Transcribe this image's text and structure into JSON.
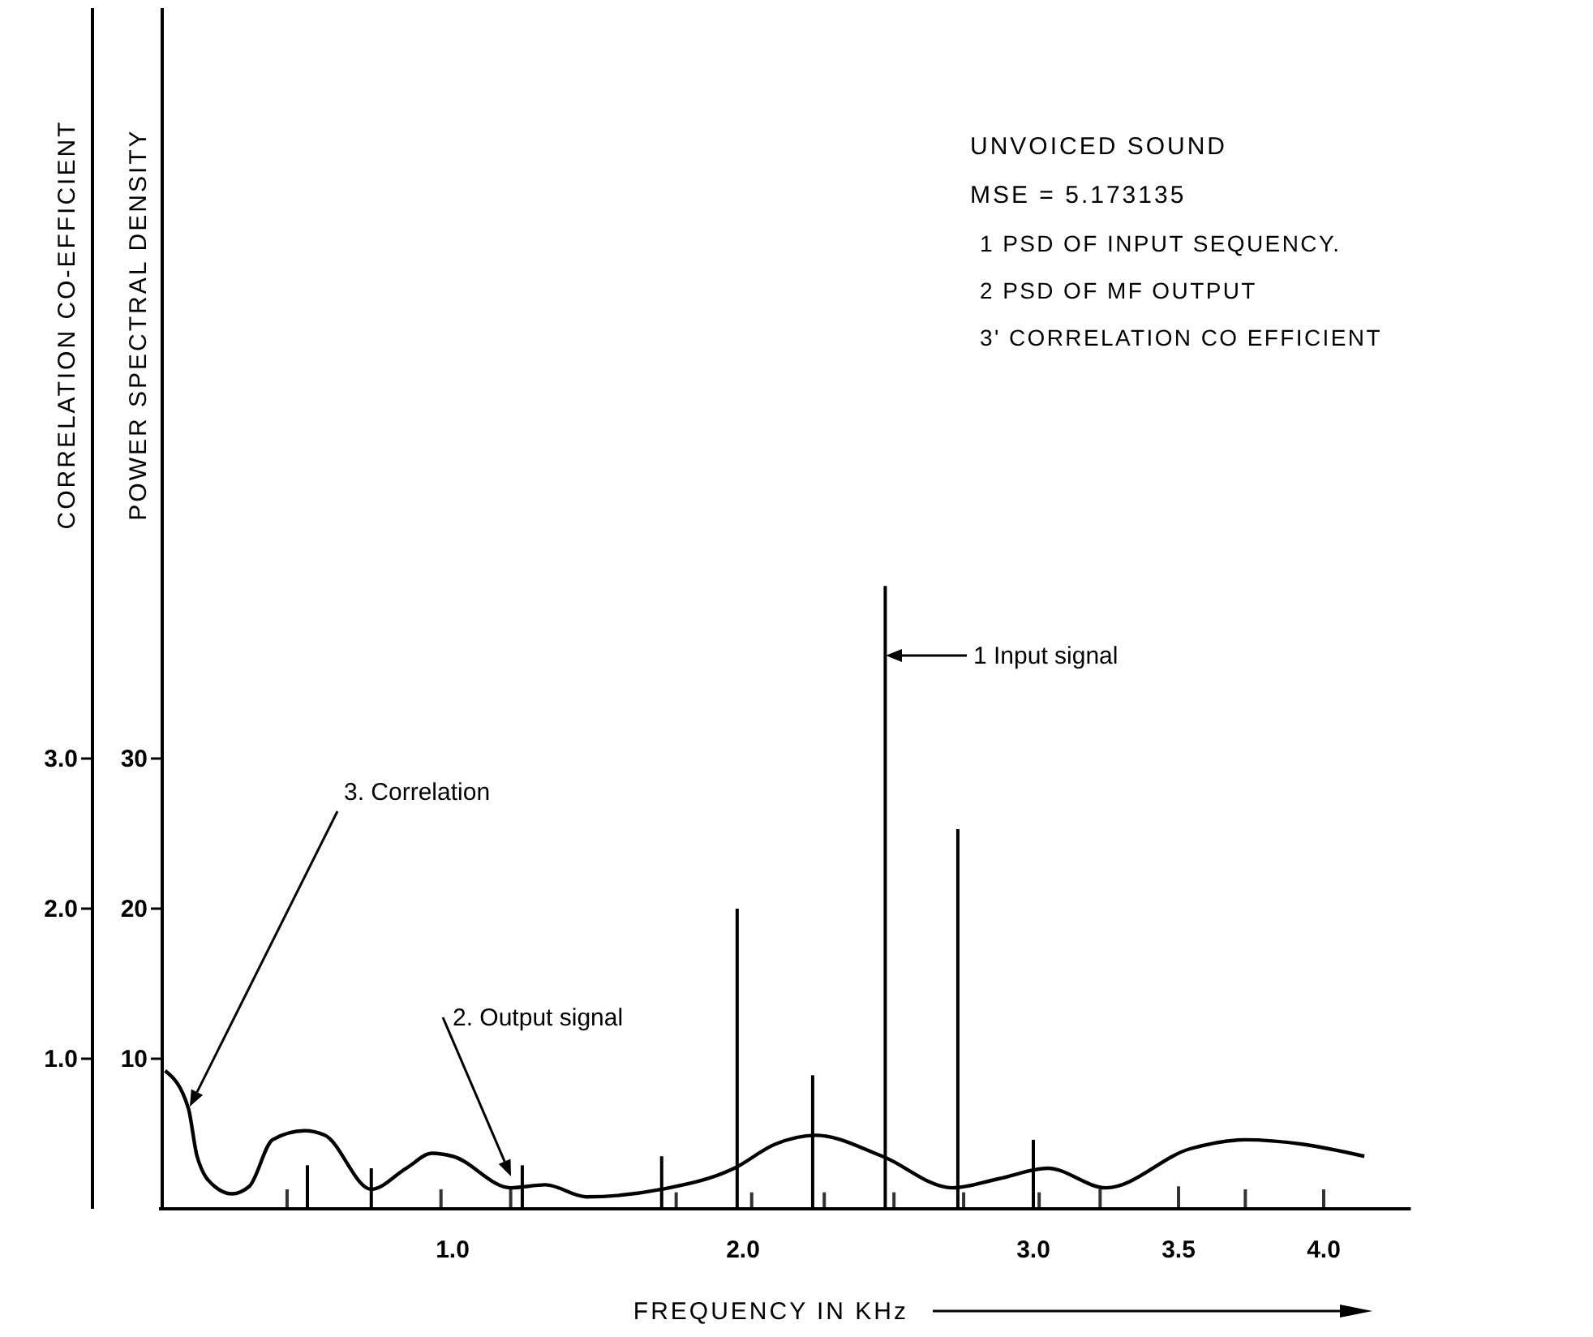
{
  "chart_data": {
    "type": "bar",
    "title": "UNVOICED SOUND",
    "subtitle": "MSE = 5.173135",
    "xlabel": "FREQUENCY IN KHz",
    "ylabel": "POWER SPECTRAL DENSITY",
    "y2label": "CORRELATION CO-EFFICIENT",
    "xlim": [
      0,
      4.3
    ],
    "xticks": [
      {
        "value": 1,
        "label": "1.0"
      },
      {
        "value": 2,
        "label": "2.0"
      },
      {
        "value": 3,
        "label": "3.0"
      },
      3.5,
      {
        "value": 4,
        "label": "4.0"
      }
    ],
    "ylim": [
      0,
      80
    ],
    "yticks": [
      10,
      20,
      30
    ],
    "y2lim": [
      0,
      8
    ],
    "y2ticks": [
      {
        "value": 1,
        "label": "1.0"
      },
      {
        "value": 2,
        "label": "2.0"
      },
      {
        "value": 3,
        "label": "3.0"
      }
    ],
    "grid": false,
    "series": [
      {
        "color": "#000000",
        "x": [
          0.5,
          0.72,
          1.24,
          1.72,
          1.98,
          2.24,
          2.49,
          2.74,
          3.0
        ],
        "values": [
          2.9,
          2.7,
          2.9,
          3.5,
          20,
          8.9,
          41.5,
          25.3,
          4.6
        ]
      },
      {
        "color": "#333333",
        "x": [
          0.43,
          0.96,
          1.2,
          1.77,
          2.03,
          2.28,
          2.52,
          2.76,
          3.02,
          3.23,
          3.5,
          3.73,
          4.0
        ],
        "values": [
          1.3,
          1.3,
          1.3,
          1.1,
          1.1,
          1.1,
          1.1,
          1.1,
          1.1,
          1.3,
          1.5,
          1.3,
          1.3
        ]
      },
      {
        "type": "line",
        "axis": "y2",
        "color": "#000000",
        "x": [
          0.01,
          0.09,
          0.12,
          0.18,
          0.24,
          0.3,
          0.38,
          0.49,
          0.56,
          0.72,
          0.84,
          0.93,
          1.0,
          1.2,
          1.32,
          1.46,
          1.72,
          1.97,
          2.11,
          2.25,
          2.48,
          2.72,
          2.88,
          3.05,
          3.25,
          3.54,
          3.73,
          3.93,
          4.14
        ],
        "values": [
          0.92,
          0.67,
          0.35,
          0.15,
          0.1,
          0.15,
          0.46,
          0.52,
          0.49,
          0.13,
          0.27,
          0.37,
          0.35,
          0.14,
          0.16,
          0.08,
          0.13,
          0.27,
          0.43,
          0.49,
          0.35,
          0.14,
          0.2,
          0.27,
          0.14,
          0.4,
          0.46,
          0.43,
          0.35
        ]
      }
    ],
    "annotations": [
      "1  PSD OF  INPUT SEQUENCY.",
      "2  PSD OF MF OUTPUT",
      "3' CORRELATION CO EFFICIENT",
      "3. Correlation",
      "2. Output signal",
      "1 Input signal"
    ]
  }
}
